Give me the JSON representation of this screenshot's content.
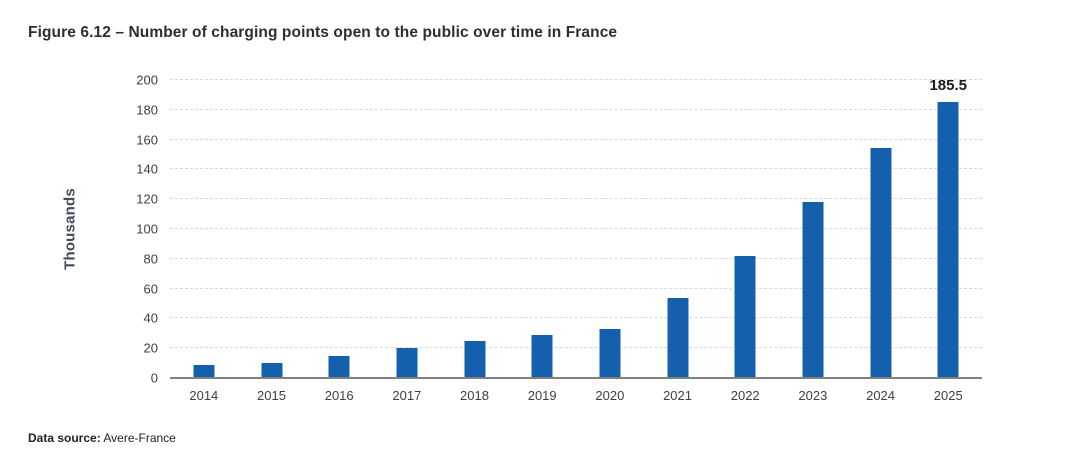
{
  "figure": {
    "title": "Figure 6.12 – Number of charging points open to the public over time in France",
    "source_label": "Data source:",
    "source_value": " Avere-France"
  },
  "chart_data": {
    "type": "bar",
    "title": "Figure 6.12 – Number of charging points open to the public over time in France",
    "categories": [
      "2014",
      "2015",
      "2016",
      "2017",
      "2018",
      "2019",
      "2020",
      "2021",
      "2022",
      "2023",
      "2024",
      "2025"
    ],
    "values": [
      9,
      10,
      14.5,
      20,
      25,
      29,
      33,
      53.5,
      82,
      118,
      154.5,
      185.5
    ],
    "annotations": [
      {
        "category": "2025",
        "text": "185.5"
      }
    ],
    "xlabel": "",
    "ylabel": "Thousands",
    "ylim": [
      0,
      200
    ],
    "ytick_step": 20,
    "grid": "horizontal-dashed",
    "legend": "none",
    "bar_color": "#1560ac",
    "source": "Avere-France"
  },
  "colors": {
    "bar": "#1560ac",
    "title_text": "#2e2e2e",
    "tick_text": "#404040",
    "axis_title_text": "#3f4a5a",
    "gridline": "#d9d9d9",
    "axis_line": "#808080",
    "annotation_text": "#1a1a1a",
    "background": "#ffffff"
  }
}
